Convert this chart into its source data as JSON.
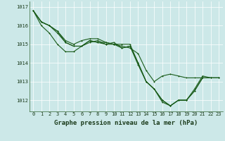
{
  "background_color": "#cce8e8",
  "grid_color": "#b0d4d4",
  "line_color": "#1a5c1a",
  "xlabel": "Graphe pression niveau de la mer (hPa)",
  "xlabel_fontsize": 6.5,
  "ylabel_labels": [
    1012,
    1013,
    1014,
    1015,
    1016,
    1017
  ],
  "xlim": [
    -0.5,
    23.5
  ],
  "ylim": [
    1011.4,
    1017.3
  ],
  "line1": [
    1016.8,
    1016.2,
    1016.0,
    1015.7,
    1015.1,
    1014.9,
    1014.9,
    1015.2,
    1015.1,
    1015.0,
    1015.0,
    1014.8,
    1014.9,
    1013.9,
    1013.0,
    1012.6,
    1012.0,
    1011.7,
    1012.0,
    1012.0,
    1012.5,
    1013.2,
    1013.2,
    1013.2
  ],
  "line2": [
    1016.8,
    1016.2,
    1016.0,
    1015.7,
    1015.2,
    1015.0,
    1015.2,
    1015.3,
    1015.3,
    1015.1,
    1015.0,
    1015.0,
    1015.0,
    1014.0,
    1013.0,
    1012.6,
    1012.0,
    1011.7,
    1012.0,
    1012.0,
    1012.6,
    1013.3,
    1013.2,
    1013.2
  ],
  "line3": [
    1016.8,
    1016.2,
    1016.0,
    1015.6,
    1015.1,
    1014.9,
    1014.9,
    1015.1,
    1015.2,
    1015.0,
    1015.1,
    1014.8,
    1014.9,
    1014.0,
    1013.0,
    1012.6,
    1011.9,
    1011.7,
    1012.0,
    1012.0,
    1012.5,
    1013.2,
    1013.2,
    1013.2
  ],
  "line4": [
    1016.8,
    1016.0,
    1015.6,
    1015.0,
    1014.6,
    1014.6,
    1014.9,
    1015.2,
    1015.1,
    1015.1,
    1015.0,
    1014.9,
    1014.8,
    1014.5,
    1013.6,
    1013.0,
    1013.3,
    1013.4,
    1013.3,
    1013.2,
    1013.2,
    1013.2,
    1013.2,
    1013.2
  ],
  "xtick_labels": [
    "0",
    "1",
    "2",
    "3",
    "4",
    "5",
    "6",
    "7",
    "8",
    "9",
    "10",
    "11",
    "12",
    "13",
    "14",
    "15",
    "16",
    "17",
    "18",
    "19",
    "20",
    "21",
    "22",
    "23"
  ],
  "tick_fontsize": 5.0,
  "line_width": 0.8,
  "marker_size": 2.0
}
